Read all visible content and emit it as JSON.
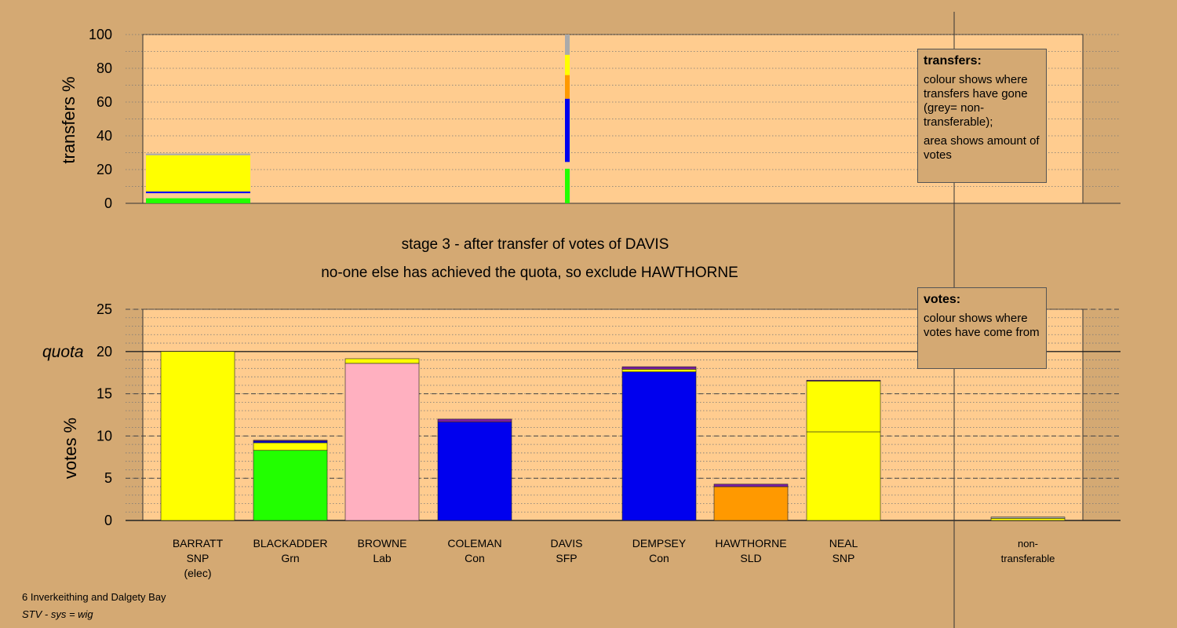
{
  "footer": {
    "ward": "6 Inverkeithing and Dalgety Bay",
    "system": "STV - sys = wig"
  },
  "titles": {
    "stage": "stage 3 - after transfer of votes of DAVIS",
    "action": "no-one else has achieved the quota, so exclude HAWTHORNE"
  },
  "colors": {
    "background": "#D4A973",
    "plot_bg": "#FFCC8F",
    "SNP": "#FFFF00",
    "Grn": "#22FF00",
    "Lab": "#FFB0C0",
    "Con": "#0000EE",
    "SFP": "#7A1FA0",
    "SLD": "#FF9900",
    "nontransferable": "#AAAAAA"
  },
  "legend_transfers": {
    "heading": "transfers:",
    "line1": "colour shows where transfers have gone (grey= non-transferable);",
    "line2": "area shows amount of votes"
  },
  "legend_votes": {
    "heading": "votes:",
    "line1": "colour shows where votes have come from"
  },
  "candidates": [
    {
      "name": "BARRATT",
      "party": "SNP",
      "note": "(elec)"
    },
    {
      "name": "BLACKADDER",
      "party": "Grn",
      "note": ""
    },
    {
      "name": "BROWNE",
      "party": "Lab",
      "note": ""
    },
    {
      "name": "COLEMAN",
      "party": "Con",
      "note": ""
    },
    {
      "name": "DAVIS",
      "party": "SFP",
      "note": ""
    },
    {
      "name": "DEMPSEY",
      "party": "Con",
      "note": ""
    },
    {
      "name": "HAWTHORNE",
      "party": "SLD",
      "note": ""
    },
    {
      "name": "NEAL",
      "party": "SNP",
      "note": ""
    }
  ],
  "nontransferable_label": {
    "line1": "non-",
    "line2": "transferable"
  },
  "chart_data": [
    {
      "type": "bar",
      "title": "",
      "ylabel": "transfers %",
      "ylim": [
        0,
        100
      ],
      "yticks": [
        0,
        20,
        40,
        60,
        80,
        100
      ],
      "grid": true,
      "legend": "top-right",
      "transfers": [
        {
          "from": "BARRATT",
          "width_pct": 30,
          "segments": [
            {
              "party": "Grn",
              "from": 0,
              "to": 3
            },
            {
              "party": "Con",
              "from": 6,
              "to": 7
            },
            {
              "party": "SNP",
              "from": 7,
              "to": 28.5
            },
            {
              "party": "nontransferable",
              "from": 28.5,
              "to": 29.5
            }
          ]
        },
        {
          "from": "DAVIS",
          "width_pct": 0.6,
          "segments": [
            {
              "party": "Grn",
              "from": 0,
              "to": 20.5
            },
            {
              "party": "Con",
              "from": 24.5,
              "to": 62
            },
            {
              "party": "SLD",
              "from": 62,
              "to": 76
            },
            {
              "party": "SNP",
              "from": 76,
              "to": 88
            },
            {
              "party": "nontransferable",
              "from": 88,
              "to": 100
            }
          ]
        }
      ]
    },
    {
      "type": "bar",
      "title": "",
      "ylabel": "votes %",
      "ylim": [
        0,
        25
      ],
      "yticks": [
        0,
        5,
        10,
        15,
        20,
        25
      ],
      "quota": 20,
      "quota_label": "quota",
      "grid": true,
      "legend": "top-right",
      "categories": [
        "BARRATT",
        "BLACKADDER",
        "BROWNE",
        "COLEMAN",
        "DAVIS",
        "DEMPSEY",
        "HAWTHORNE",
        "NEAL",
        "non-transferable"
      ],
      "stacks": [
        [
          {
            "party": "SNP",
            "value": 20.0
          }
        ],
        [
          {
            "party": "Grn",
            "value": 8.3
          },
          {
            "party": "SNP",
            "value": 0.9
          },
          {
            "party": "Con",
            "value": 0.2
          },
          {
            "party": "SFP",
            "value": 0.1
          }
        ],
        [
          {
            "party": "Lab",
            "value": 18.6
          },
          {
            "party": "SNP",
            "value": 0.55
          }
        ],
        [
          {
            "party": "Con",
            "value": 11.65
          },
          {
            "party": "SFP",
            "value": 0.35
          }
        ],
        [
          {
            "party": "SFP",
            "value": 0.0
          }
        ],
        [
          {
            "party": "Con",
            "value": 17.6
          },
          {
            "party": "SNP",
            "value": 0.3
          },
          {
            "party": "SFP",
            "value": 0.3
          }
        ],
        [
          {
            "party": "SLD",
            "value": 4.0
          },
          {
            "party": "SFP",
            "value": 0.3
          }
        ],
        [
          {
            "party": "SNP",
            "value": 10.5
          },
          {
            "party": "SNP",
            "value": 6.0
          },
          {
            "party": "SFP",
            "value": 0.1
          }
        ],
        [
          {
            "party": "SNP",
            "value": 0.25
          },
          {
            "party": "nontransferable",
            "value": 0.15
          }
        ]
      ]
    }
  ]
}
